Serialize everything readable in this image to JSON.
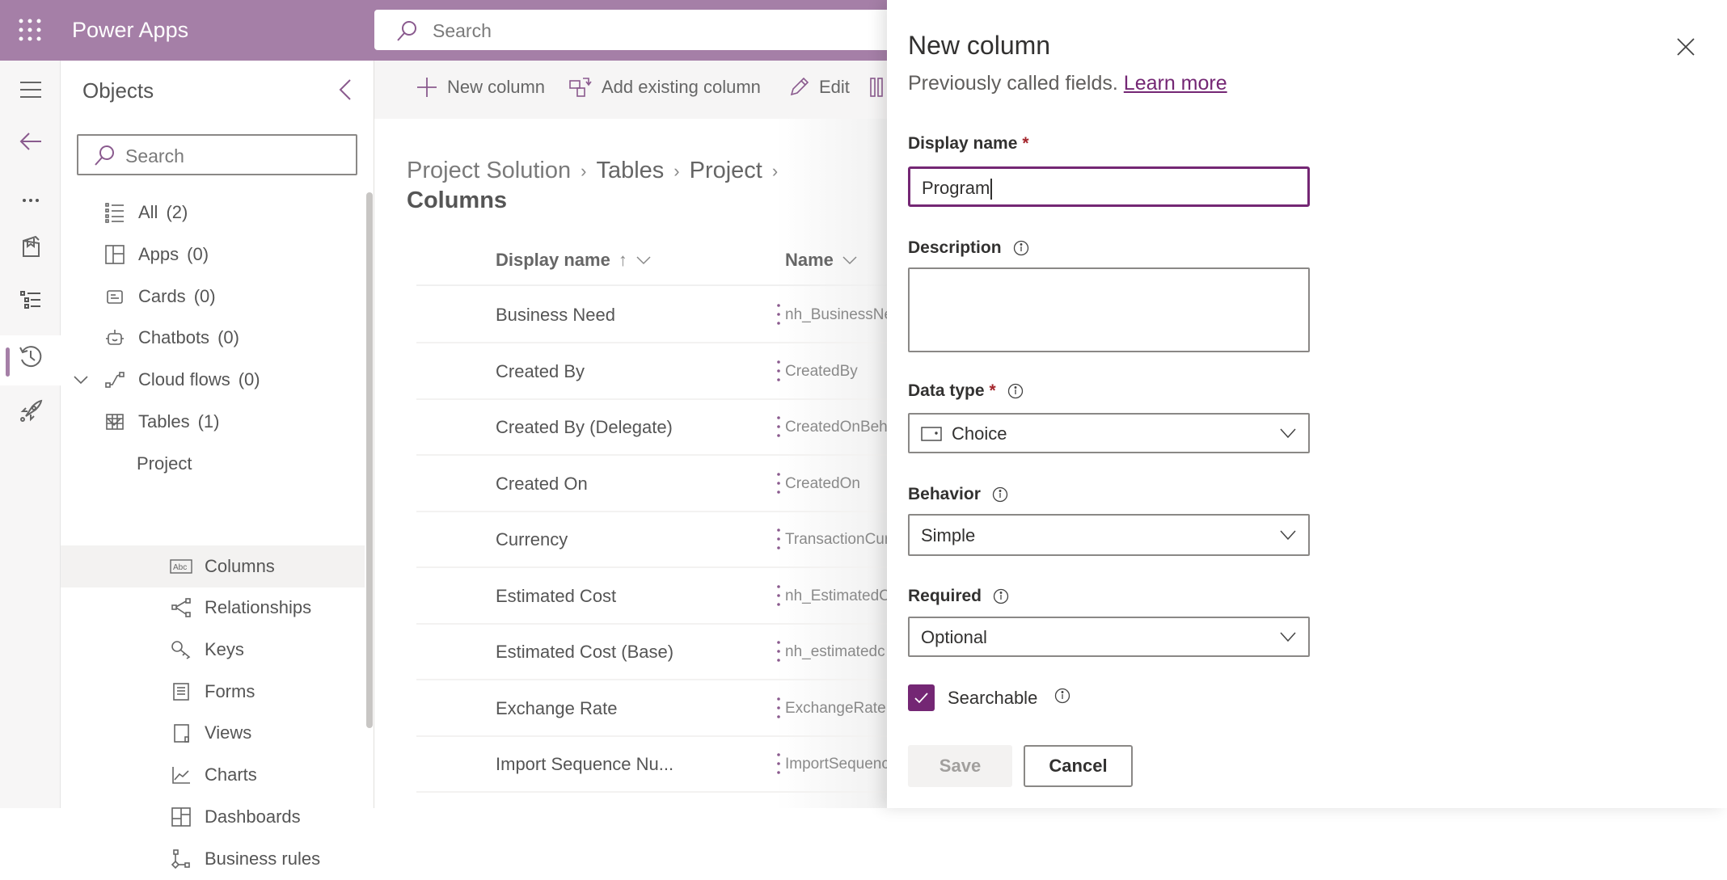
{
  "header": {
    "app_name": "Power Apps",
    "search_placeholder": "Search",
    "brand_color": "#a57fa7"
  },
  "rail": {
    "icons": [
      "hamburger-icon",
      "back-arrow-icon",
      "more-icon",
      "book-icon",
      "object-list-icon",
      "history-icon",
      "rocket-icon"
    ],
    "selected": "object-list-icon"
  },
  "objects": {
    "title": "Objects",
    "search_placeholder": "Search",
    "items": [
      {
        "label": "All",
        "count": "(2)",
        "icon": "list-icon"
      },
      {
        "label": "Apps",
        "count": "(0)",
        "icon": "apps-icon"
      },
      {
        "label": "Cards",
        "count": "(0)",
        "icon": "card-icon"
      },
      {
        "label": "Chatbots",
        "count": "(0)",
        "icon": "bot-icon"
      },
      {
        "label": "Cloud flows",
        "count": "(0)",
        "icon": "flow-icon"
      },
      {
        "label": "Tables",
        "count": "(1)",
        "icon": "table-icon"
      },
      {
        "label": "Project"
      },
      {
        "label": "Columns",
        "icon": "abc-icon",
        "selected": true
      },
      {
        "label": "Relationships",
        "icon": "relationship-icon"
      },
      {
        "label": "Keys",
        "icon": "key-icon"
      },
      {
        "label": "Forms",
        "icon": "form-icon"
      },
      {
        "label": "Views",
        "icon": "view-icon"
      },
      {
        "label": "Charts",
        "icon": "chart-icon"
      },
      {
        "label": "Dashboards",
        "icon": "dashboard-icon"
      },
      {
        "label": "Business rules",
        "icon": "business-rule-icon"
      }
    ]
  },
  "commandbar": {
    "new_column": "New column",
    "add_existing": "Add existing column",
    "edit": "Edit"
  },
  "breadcrumb": [
    "Project Solution",
    "Tables",
    "Project",
    "Columns"
  ],
  "table": {
    "headers": {
      "display_name": "Display name",
      "name": "Name"
    },
    "sort": "ascending",
    "rows": [
      {
        "display_name": "Business Need",
        "name": "nh_BusinessNe"
      },
      {
        "display_name": "Created By",
        "name": "CreatedBy"
      },
      {
        "display_name": "Created By (Delegate)",
        "name": "CreatedOnBeh"
      },
      {
        "display_name": "Created On",
        "name": "CreatedOn"
      },
      {
        "display_name": "Currency",
        "name": "TransactionCur"
      },
      {
        "display_name": "Estimated Cost",
        "name": "nh_EstimatedC"
      },
      {
        "display_name": "Estimated Cost (Base)",
        "name": "nh_estimatedc"
      },
      {
        "display_name": "Exchange Rate",
        "name": "ExchangeRate"
      },
      {
        "display_name": "Import Sequence Nu...",
        "name": "ImportSequenc"
      }
    ]
  },
  "panel": {
    "title": "New column",
    "subtitle": "Previously called fields.",
    "learn_more": "Learn more",
    "display_name_label": "Display name",
    "display_name_value": "Program",
    "required_mark": "*",
    "description_label": "Description",
    "description_value": "",
    "data_type_label": "Data type",
    "data_type_value": "Choice",
    "behavior_label": "Behavior",
    "behavior_value": "Simple",
    "required_label": "Required",
    "required_value": "Optional",
    "searchable_label": "Searchable",
    "searchable_checked": true,
    "save": "Save",
    "cancel": "Cancel",
    "accent_color": "#742774"
  }
}
